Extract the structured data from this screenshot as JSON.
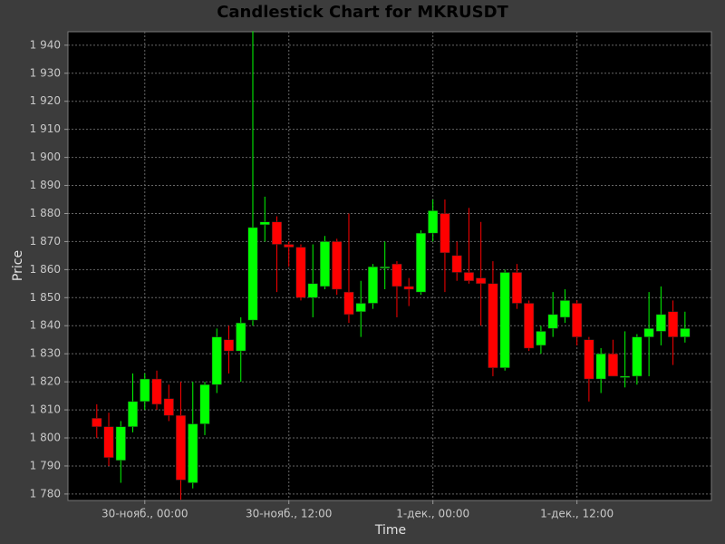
{
  "chart_data": {
    "type": "candlestick",
    "title": "Candlestick Chart for MKRUSDT",
    "x_label": "Time",
    "y_label": "Price",
    "x": [
      -4,
      -3,
      -2,
      -1,
      0,
      1,
      2,
      3,
      4,
      5,
      6,
      7,
      8,
      9,
      10,
      11,
      12,
      13,
      14,
      15,
      16,
      17,
      18,
      19,
      20,
      21,
      22,
      23,
      24,
      25,
      26,
      27,
      28,
      29,
      30,
      31,
      32,
      33,
      34,
      35,
      36,
      37,
      38,
      39,
      40,
      41,
      42,
      43,
      44,
      45
    ],
    "open": [
      1807,
      1804,
      1792,
      1804,
      1813,
      1821,
      1814,
      1808,
      1784,
      1805,
      1819,
      1835,
      1831,
      1842,
      1876,
      1877,
      1869,
      1868,
      1850,
      1854,
      1870,
      1852,
      1845,
      1848,
      1861,
      1862,
      1854,
      1852,
      1873,
      1880,
      1865,
      1859,
      1857,
      1855,
      1825,
      1859,
      1848,
      1833,
      1839,
      1843,
      1848,
      1835,
      1821,
      1830,
      1822,
      1822,
      1836,
      1838,
      1845,
      1836
    ],
    "high": [
      1812,
      1809,
      1806,
      1823,
      1823,
      1824,
      1819,
      1820,
      1820,
      1820,
      1839,
      1840,
      1843,
      1945,
      1886,
      1879,
      1870,
      1869,
      1869,
      1872,
      1871,
      1880,
      1856,
      1862,
      1870,
      1863,
      1857,
      1874,
      1885,
      1885,
      1870,
      1882,
      1877,
      1863,
      1860,
      1862,
      1849,
      1840,
      1852,
      1853,
      1849,
      1836,
      1832,
      1835,
      1838,
      1837,
      1852,
      1854,
      1849,
      1845
    ],
    "low": [
      1800,
      1790,
      1784,
      1802,
      1810,
      1810,
      1806,
      1778,
      1782,
      1801,
      1816,
      1823,
      1820,
      1840,
      1870,
      1852,
      1861,
      1849,
      1843,
      1853,
      1851,
      1841,
      1836,
      1846,
      1853,
      1843,
      1847,
      1851,
      1870,
      1852,
      1856,
      1855,
      1840,
      1822,
      1824,
      1846,
      1831,
      1830,
      1836,
      1841,
      1833,
      1813,
      1816,
      1822,
      1818,
      1819,
      1822,
      1833,
      1826,
      1834
    ],
    "close": [
      1804,
      1793,
      1804,
      1813,
      1821,
      1812,
      1808,
      1785,
      1805,
      1819,
      1836,
      1831,
      1841,
      1875,
      1877,
      1869,
      1868,
      1850,
      1855,
      1870,
      1853,
      1844,
      1848,
      1861,
      1861,
      1854,
      1853,
      1873,
      1881,
      1866,
      1859,
      1856,
      1855,
      1825,
      1859,
      1848,
      1832,
      1838,
      1844,
      1849,
      1836,
      1821,
      1830,
      1822,
      1822,
      1836,
      1839,
      1844,
      1836,
      1839
    ],
    "up_color": "#00ff00",
    "down_color": "#ff0000",
    "xlim": [
      -6.4,
      47.2
    ],
    "xticks": [
      {
        "value": 0,
        "label": "30-нояб., 00:00"
      },
      {
        "value": 12,
        "label": "30-нояб., 12:00"
      },
      {
        "value": 24,
        "label": "1-дек., 00:00"
      },
      {
        "value": 36,
        "label": "1-дек., 12:00"
      }
    ],
    "ylim": [
      1777.7,
      1944.8
    ],
    "yticks": [
      {
        "value": 1780,
        "label": "1 780"
      },
      {
        "value": 1790,
        "label": "1 790"
      },
      {
        "value": 1800,
        "label": "1 800"
      },
      {
        "value": 1810,
        "label": "1 810"
      },
      {
        "value": 1820,
        "label": "1 820"
      },
      {
        "value": 1830,
        "label": "1 830"
      },
      {
        "value": 1840,
        "label": "1 840"
      },
      {
        "value": 1850,
        "label": "1 850"
      },
      {
        "value": 1860,
        "label": "1 860"
      },
      {
        "value": 1870,
        "label": "1 870"
      },
      {
        "value": 1880,
        "label": "1 880"
      },
      {
        "value": 1890,
        "label": "1 890"
      },
      {
        "value": 1900,
        "label": "1 900"
      },
      {
        "value": 1910,
        "label": "1 910"
      },
      {
        "value": 1920,
        "label": "1 920"
      },
      {
        "value": 1930,
        "label": "1 930"
      },
      {
        "value": 1940,
        "label": "1 940"
      }
    ],
    "grid": true
  }
}
